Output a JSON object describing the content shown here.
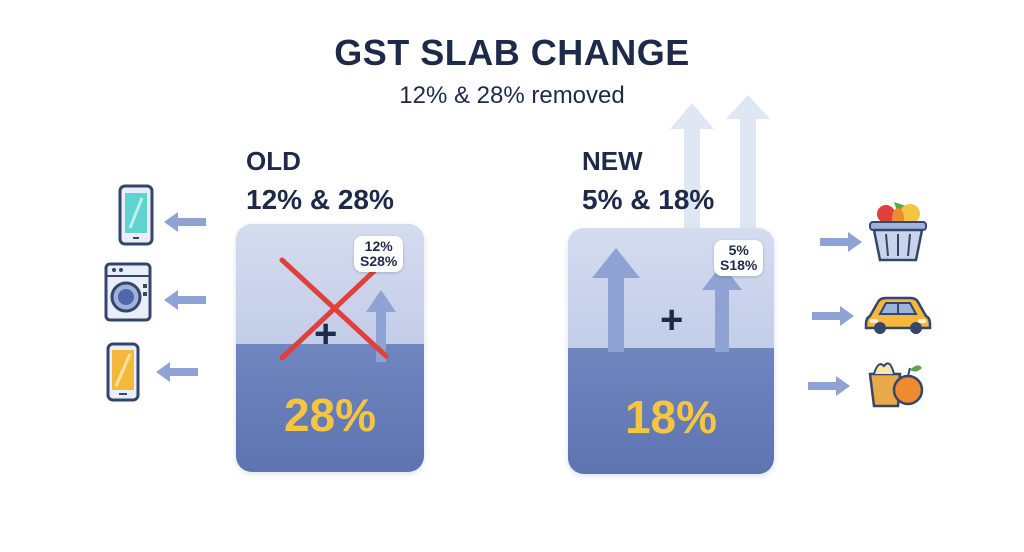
{
  "title": "GST SLAB CHANGE",
  "subtitle": "12% & 28% removed",
  "old": {
    "label": "OLD",
    "rates": "12% & 28%",
    "bubble_line1": "12%",
    "bubble_line2": "S28%",
    "big_rate": "28%",
    "plus": "+"
  },
  "new": {
    "label": "NEW",
    "rates": "5% & 18%",
    "bubble_line1": "5%",
    "bubble_line2": "S18%",
    "big_rate": "18%",
    "plus": "+"
  },
  "left_icons": [
    "smartphone-icon",
    "washing-machine-icon",
    "mobile-phone-icon"
  ],
  "right_icons": [
    "grocery-basket-icon",
    "car-icon",
    "fruit-bag-icon"
  ],
  "colors": {
    "navy": "#1e2a4a",
    "card_light": "#c9d3ea",
    "card_dark": "#5d74b0",
    "rate_yellow": "#f5c542",
    "cross_red": "#e0403a",
    "arrow_blue": "#8ea2d4"
  }
}
